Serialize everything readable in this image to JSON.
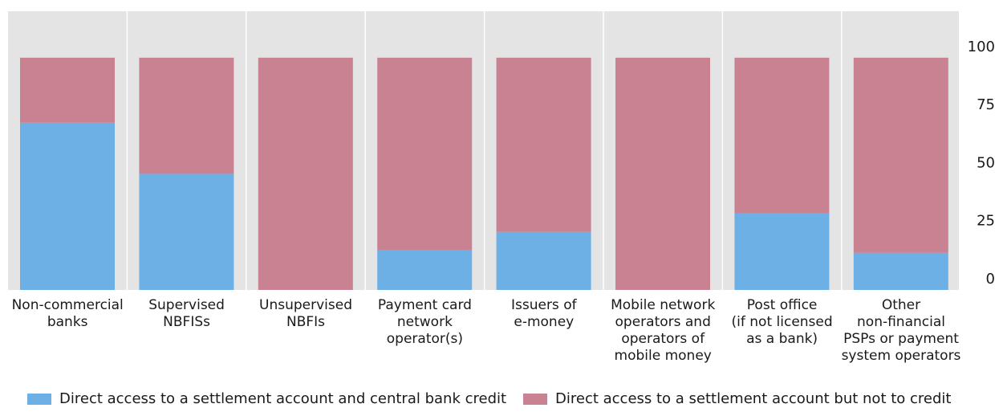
{
  "colors": {
    "credit": "#6cb0e6",
    "no_credit": "#c98292",
    "panel_bg": "#e4e4e4",
    "grid": "#ffffff"
  },
  "chart_data": {
    "type": "bar",
    "stacked": true,
    "categories": [
      [
        "Non-commercial",
        "banks"
      ],
      [
        "Supervised",
        "NBFISs"
      ],
      [
        "Unsupervised",
        "NBFIs"
      ],
      [
        "Payment card",
        "network",
        "operator(s)"
      ],
      [
        "Issuers of",
        "e-money"
      ],
      [
        "Mobile network",
        "operators and",
        "operators of",
        "mobile money"
      ],
      [
        "Post office",
        "(if not licensed",
        "as a bank)"
      ],
      [
        "Other",
        "non-financial",
        "PSPs or payment",
        "system operators"
      ]
    ],
    "series": [
      {
        "name": "Direct access to a settlement account and central bank credit",
        "color": "#6cb0e6",
        "values": [
          72,
          50,
          0,
          17,
          25,
          0,
          33,
          16
        ]
      },
      {
        "name": "Direct access to a settlement account but not to credit",
        "color": "#c98292",
        "values": [
          28,
          50,
          100,
          83,
          75,
          100,
          67,
          84
        ]
      }
    ],
    "y_ticks": [
      "0",
      "25",
      "50",
      "75",
      "100"
    ],
    "ylim": [
      0,
      120
    ],
    "y_axis_side": "right",
    "grid": true,
    "legend_position": "bottom"
  }
}
